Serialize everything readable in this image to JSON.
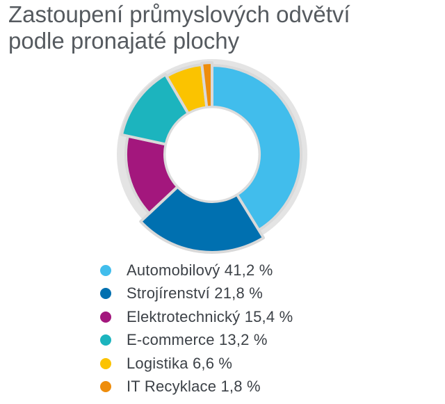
{
  "chart_data": {
    "type": "pie",
    "title_lines": [
      "Zastoupení průmyslových odvětví",
      "podle pronajaté plochy"
    ],
    "categories": [
      "Automobilový",
      "Strojírenství",
      "Elektrotechnický",
      "E-commerce",
      "Logistika",
      "IT Recyklace"
    ],
    "values": [
      41.2,
      21.8,
      15.4,
      13.2,
      6.6,
      1.8
    ],
    "value_suffix": " %",
    "colors": [
      "#41bdec",
      "#0070b0",
      "#a3177d",
      "#1cb4be",
      "#fbc300",
      "#ee8d0c"
    ],
    "legend_labels": [
      "Automobilový 41,2 %",
      "Strojírenství 21,8 %",
      "Elektrotechnický 15,4 %",
      "E-commerce 13,2 %",
      "Logistika 6,6 %",
      "IT Recyklace 1,8 %"
    ],
    "style": "donut",
    "legend_position": "bottom"
  }
}
